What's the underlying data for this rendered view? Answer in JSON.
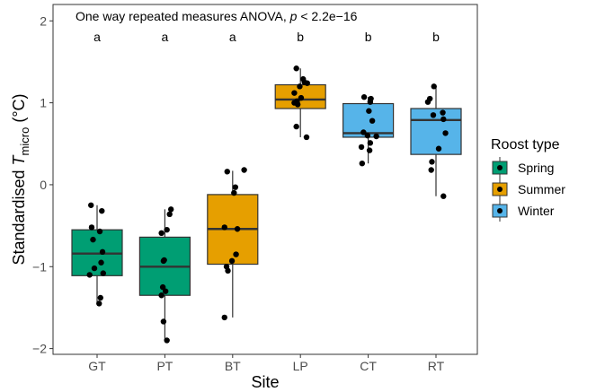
{
  "chart_data": {
    "type": "box",
    "annotation": {
      "prefix": "One way repeated measures ANOVA, ",
      "italic": "p",
      "suffix": " < 2.2e−16"
    },
    "xlabel": "Site",
    "ylabel": {
      "prefix": "Standardised ",
      "italic": "T",
      "subscript": "micro",
      "suffix": " (°C)"
    },
    "yticks": [
      {
        "value": -2,
        "label": "−2"
      },
      {
        "value": -1,
        "label": "−1"
      },
      {
        "value": 0,
        "label": "0"
      },
      {
        "value": 1,
        "label": "1"
      },
      {
        "value": 2,
        "label": "2"
      }
    ],
    "ylim": [
      -2.07,
      2.2
    ],
    "categories": [
      "GT",
      "PT",
      "BT",
      "LP",
      "CT",
      "RT"
    ],
    "legend": {
      "title": "Roost type",
      "entries": [
        {
          "name": "Spring",
          "color": "#009E73"
        },
        {
          "name": "Summer",
          "color": "#E69F00"
        },
        {
          "name": "Winter",
          "color": "#56B4E9"
        }
      ]
    },
    "boxes": [
      {
        "site": "GT",
        "group": "Spring",
        "letter": "a",
        "min": -1.45,
        "q1": -1.11,
        "median": -0.84,
        "q3": -0.55,
        "max": -0.25,
        "points": [
          [
            -0.09,
            -0.25
          ],
          [
            0.07,
            -0.32
          ],
          [
            -0.08,
            -0.52
          ],
          [
            0.04,
            -0.57
          ],
          [
            -0.06,
            -0.67
          ],
          [
            0.08,
            -0.82
          ],
          [
            0.06,
            -0.95
          ],
          [
            -0.04,
            -1.02
          ],
          [
            0.09,
            -1.08
          ],
          [
            -0.11,
            -1.1
          ],
          [
            0.05,
            -1.38
          ],
          [
            0.03,
            -1.45
          ]
        ]
      },
      {
        "site": "PT",
        "group": "Spring",
        "letter": "a",
        "min": -1.9,
        "q1": -1.35,
        "median": -1.0,
        "q3": -0.64,
        "max": -0.3,
        "points": [
          [
            0.09,
            -0.3
          ],
          [
            0.07,
            -0.36
          ],
          [
            0.03,
            -0.55
          ],
          [
            -0.05,
            -0.59
          ],
          [
            -0.01,
            -0.92
          ],
          [
            -0.02,
            -0.93
          ],
          [
            -0.03,
            -1.25
          ],
          [
            0.01,
            -1.3
          ],
          [
            -0.05,
            -1.35
          ],
          [
            -0.02,
            -1.67
          ],
          [
            0.03,
            -1.9
          ]
        ]
      },
      {
        "site": "BT",
        "group": "Summer",
        "letter": "a",
        "min": -1.62,
        "q1": -0.97,
        "median": -0.54,
        "q3": -0.12,
        "max": 0.17,
        "points": [
          [
            0.17,
            0.18
          ],
          [
            -0.08,
            0.16
          ],
          [
            0.04,
            -0.03
          ],
          [
            0.02,
            -0.1
          ],
          [
            -0.12,
            -0.52
          ],
          [
            0.07,
            -0.54
          ],
          [
            0.05,
            -0.85
          ],
          [
            -0.01,
            -0.93
          ],
          [
            -0.09,
            -1.0
          ],
          [
            -0.07,
            -1.05
          ],
          [
            -0.12,
            -1.62
          ]
        ]
      },
      {
        "site": "LP",
        "group": "Summer",
        "letter": "b",
        "min": 0.58,
        "q1": 0.93,
        "median": 1.04,
        "q3": 1.22,
        "max": 1.42,
        "points": [
          [
            -0.06,
            1.42
          ],
          [
            0.04,
            1.29
          ],
          [
            0.06,
            1.25
          ],
          [
            0.1,
            1.24
          ],
          [
            -0.01,
            1.2
          ],
          [
            -0.09,
            1.12
          ],
          [
            0.01,
            1.06
          ],
          [
            -0.05,
            1.02
          ],
          [
            -0.09,
            1.0
          ],
          [
            -0.04,
            0.98
          ],
          [
            -0.06,
            0.71
          ],
          [
            0.09,
            0.58
          ]
        ]
      },
      {
        "site": "CT",
        "group": "Winter",
        "letter": "b",
        "min": 0.26,
        "q1": 0.58,
        "median": 0.63,
        "q3": 0.99,
        "max": 1.07,
        "points": [
          [
            0.04,
            1.05
          ],
          [
            -0.06,
            1.07
          ],
          [
            0.03,
            1.01
          ],
          [
            0.01,
            0.9
          ],
          [
            0.06,
            0.78
          ],
          [
            -0.07,
            0.64
          ],
          [
            0.12,
            0.59
          ],
          [
            -0.01,
            0.6
          ],
          [
            0.03,
            0.51
          ],
          [
            -0.1,
            0.46
          ],
          [
            0.02,
            0.42
          ],
          [
            -0.09,
            0.26
          ]
        ]
      },
      {
        "site": "RT",
        "group": "Winter",
        "letter": "b",
        "min": -0.14,
        "q1": 0.37,
        "median": 0.79,
        "q3": 0.93,
        "max": 1.2,
        "points": [
          [
            -0.03,
            1.2
          ],
          [
            -0.09,
            1.05
          ],
          [
            -0.12,
            1.01
          ],
          [
            0.1,
            0.88
          ],
          [
            -0.04,
            0.85
          ],
          [
            0.11,
            0.8
          ],
          [
            0.14,
            0.63
          ],
          [
            0.04,
            0.44
          ],
          [
            -0.06,
            0.28
          ],
          [
            -0.07,
            0.18
          ],
          [
            0.11,
            -0.14
          ]
        ]
      }
    ]
  }
}
